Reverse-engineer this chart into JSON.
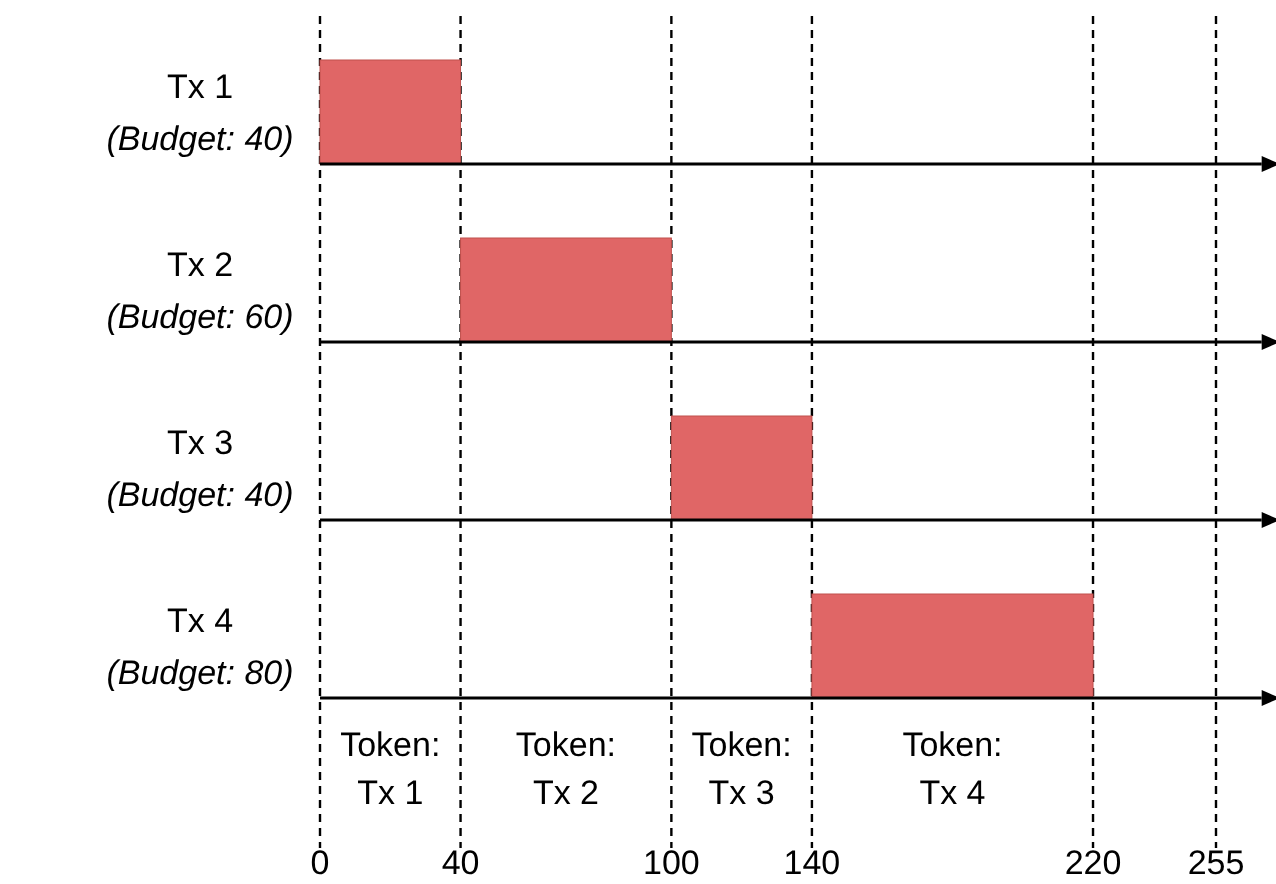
{
  "chart_data": {
    "type": "bar",
    "orientation": "horizontal",
    "categories": [
      "Tx 1\n(Budget: 40)",
      "Tx 2\n(Budget: 60)",
      "Tx 3\n(Budget: 40)",
      "Tx 4\n(Budget: 80)"
    ],
    "base": [
      0,
      40,
      100,
      140
    ],
    "values": [
      40,
      60,
      40,
      80
    ],
    "color": "#e06666",
    "xlim": [
      0,
      268
    ],
    "xticks": [
      0,
      40,
      100,
      140,
      220,
      255
    ],
    "grid": "x",
    "annotations": [
      "Token:\nTx 1",
      "Token:\nTx 2",
      "Token:\nTx 3",
      "Token:\nTx 4"
    ]
  }
}
